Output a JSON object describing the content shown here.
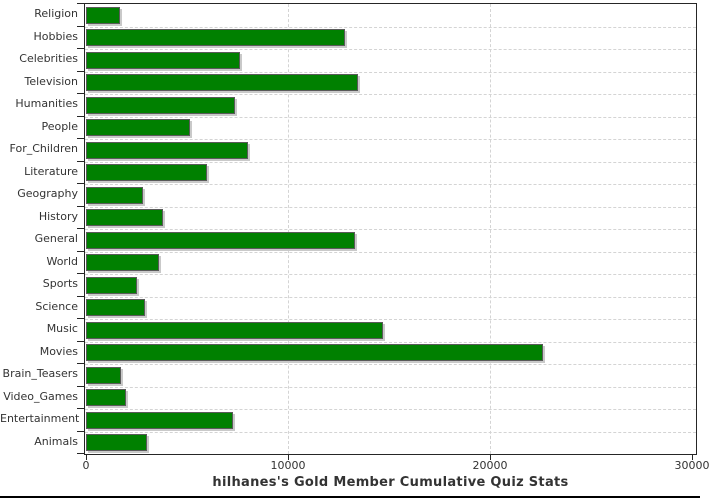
{
  "colors": {
    "bar_fill": "#008000",
    "bar_outline": "#5a5a5a",
    "bar_shadow": "#c9c9c9",
    "gridline": "#d4d4d4",
    "axis_frame": "#262626",
    "text": "#333333",
    "bottom_rule": "#000000"
  },
  "chart_data": {
    "type": "bar",
    "orientation": "horizontal",
    "title": "hilhanes's Gold Member Cumulative Quiz Stats",
    "xlabel": "",
    "ylabel": "",
    "categories": [
      "Religion",
      "Hobbies",
      "Celebrities",
      "Television",
      "Humanities",
      "People",
      "For_Children",
      "Literature",
      "Geography",
      "History",
      "General",
      "World",
      "Sports",
      "Science",
      "Music",
      "Movies",
      "Brain_Teasers",
      "Video_Games",
      "Entertainment",
      "Animals"
    ],
    "values": [
      1700,
      12800,
      7600,
      13450,
      7400,
      5150,
      8000,
      6000,
      2800,
      3800,
      13300,
      3600,
      2500,
      2900,
      14700,
      22600,
      1750,
      2000,
      7300,
      3000
    ],
    "xlim": [
      0,
      30000
    ],
    "x_ticks": [
      0,
      10000,
      20000,
      30000
    ],
    "x_tick_labels": [
      "0",
      "10000",
      "20000",
      "30000"
    ],
    "grid": true,
    "legend": false
  }
}
